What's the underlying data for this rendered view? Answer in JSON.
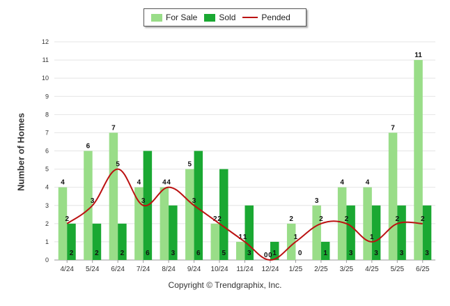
{
  "chart_data": {
    "type": "bar",
    "title": "",
    "xlabel": "",
    "ylabel": "Number of Homes",
    "ylim": [
      0,
      12
    ],
    "yticks": [
      "0",
      "1",
      "2",
      "3",
      "4",
      "5",
      "6",
      "7",
      "8",
      "9",
      "10",
      "11",
      "12"
    ],
    "categories": [
      "4/24",
      "5/24",
      "6/24",
      "7/24",
      "8/24",
      "9/24",
      "10/24",
      "11/24",
      "12/24",
      "1/25",
      "2/25",
      "3/25",
      "4/25",
      "5/25",
      "6/25"
    ],
    "series": [
      {
        "name": "For Sale",
        "type": "bar",
        "color": "#99dd88",
        "values": [
          4,
          6,
          7,
          4,
          4,
          5,
          2,
          1,
          0,
          2,
          3,
          4,
          4,
          7,
          11
        ]
      },
      {
        "name": "Sold",
        "type": "bar",
        "color": "#1aa832",
        "values": [
          2,
          2,
          2,
          6,
          3,
          6,
          5,
          3,
          1,
          0,
          1,
          3,
          3,
          3,
          3
        ]
      },
      {
        "name": "Pended",
        "type": "line",
        "color": "#bb1111",
        "values": [
          2,
          3,
          5,
          3,
          4,
          3,
          2,
          1,
          0,
          1,
          2,
          2,
          1,
          2,
          2
        ]
      }
    ],
    "legend_position": "top-center",
    "grid": true
  },
  "footer": {
    "copyright": "Copyright © Trendgraphix, Inc."
  }
}
